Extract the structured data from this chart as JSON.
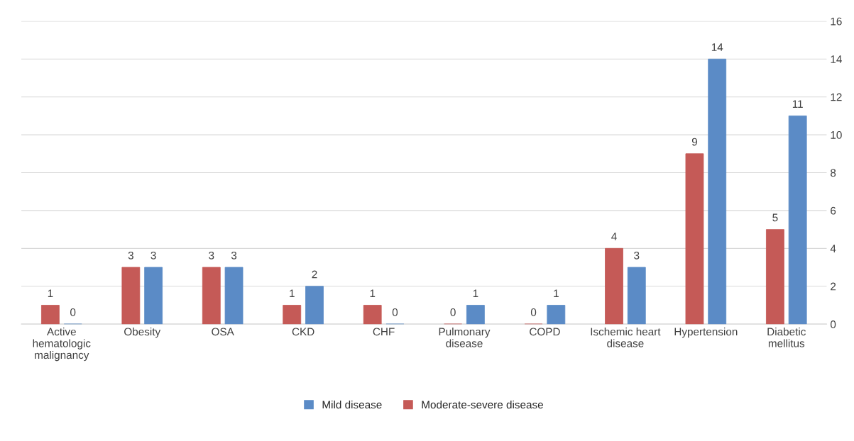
{
  "chart_data": {
    "type": "bar",
    "categories": [
      "Active\nhematologic\nmalignancy",
      "Obesity",
      "OSA",
      "CKD",
      "CHF",
      "Pulmonary\ndisease",
      "COPD",
      "Ischemic heart\ndisease",
      "Hypertension",
      "Diabetic\nmellitus"
    ],
    "series": [
      {
        "name": "Moderate-severe disease",
        "color": "#c55a57",
        "values": [
          1,
          3,
          3,
          1,
          1,
          0,
          0,
          4,
          9,
          5
        ]
      },
      {
        "name": "Mild disease",
        "color": "#5b8bc6",
        "values": [
          0,
          3,
          3,
          2,
          0,
          1,
          1,
          3,
          14,
          11
        ]
      }
    ],
    "ylim": [
      0,
      16
    ],
    "yticks": [
      0,
      2,
      4,
      6,
      8,
      10,
      12,
      14,
      16
    ],
    "grid": "y",
    "legend": "bottom",
    "data_labels": true
  }
}
